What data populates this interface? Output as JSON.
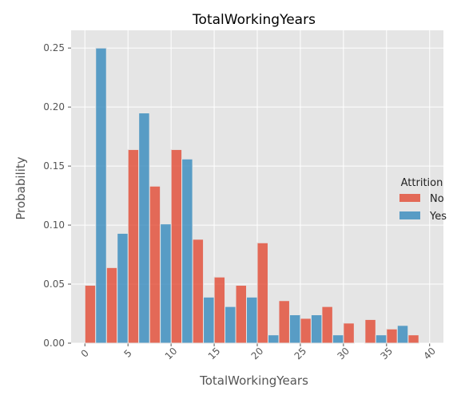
{
  "chart_data": {
    "type": "bar",
    "title": "TotalWorkingYears",
    "xlabel": "TotalWorkingYears",
    "ylabel": "Probability",
    "xlim": [
      -1.6,
      41.6
    ],
    "ylim": [
      0,
      0.265
    ],
    "xticks": [
      0,
      5,
      10,
      15,
      20,
      25,
      30,
      35,
      40
    ],
    "yticks": [
      0.0,
      0.05,
      0.1,
      0.15,
      0.2,
      0.25
    ],
    "ytick_labels": [
      "0.00",
      "0.05",
      "0.10",
      "0.15",
      "0.20",
      "0.25"
    ],
    "grid": true,
    "legend_title": "Attrition",
    "legend_position": "right",
    "bin_edges": [
      0,
      2.5,
      5,
      7.5,
      10,
      12.5,
      15,
      17.5,
      20,
      22.5,
      25,
      27.5,
      30,
      32.5,
      35,
      37.5,
      40
    ],
    "series": [
      {
        "name": "No",
        "color": "#E24A33",
        "values": [
          0.049,
          0.064,
          0.164,
          0.133,
          0.164,
          0.088,
          0.056,
          0.049,
          0.085,
          0.036,
          0.021,
          0.031,
          0.017,
          0.02,
          0.012,
          0.007,
          0.001
        ]
      },
      {
        "name": "Yes",
        "color": "#348ABD",
        "values": [
          0.25,
          0.093,
          0.195,
          0.101,
          0.156,
          0.039,
          0.031,
          0.039,
          0.007,
          0.024,
          0.024,
          0.007,
          0.0,
          0.007,
          0.015,
          0.0,
          0.007
        ]
      }
    ]
  }
}
